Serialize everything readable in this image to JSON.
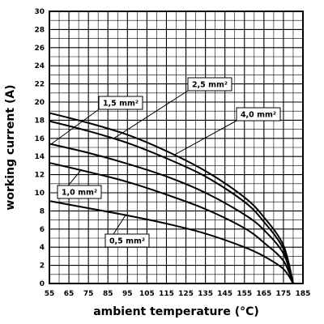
{
  "chart_data": {
    "type": "line",
    "xlabel": "ambient temperature (°C)",
    "ylabel": "working current (A)",
    "xlim": [
      55,
      185
    ],
    "ylim": [
      0,
      30
    ],
    "x_ticks": [
      "55",
      "65",
      "75",
      "85",
      "95",
      "105",
      "115",
      "125",
      "135",
      "145",
      "155",
      "165",
      "175",
      "185"
    ],
    "y_ticks": [
      "0",
      "2",
      "4",
      "6",
      "8",
      "10",
      "12",
      "14",
      "16",
      "18",
      "20",
      "22",
      "24",
      "26",
      "28",
      "30"
    ],
    "grid": true,
    "series": [
      {
        "name": "0,5 mm²",
        "x": [
          55,
          75,
          95,
          115,
          135,
          155,
          165,
          175,
          180
        ],
        "y": [
          9.1,
          8.3,
          7.5,
          6.6,
          5.5,
          4.0,
          3.0,
          1.6,
          0
        ]
      },
      {
        "name": "1,0 mm²",
        "x": [
          55,
          75,
          95,
          115,
          135,
          155,
          165,
          175,
          180
        ],
        "y": [
          13.3,
          12.3,
          11.2,
          9.8,
          8.2,
          6.1,
          4.5,
          2.5,
          0
        ]
      },
      {
        "name": "1,5 mm²",
        "x": [
          55,
          75,
          95,
          115,
          135,
          155,
          165,
          175,
          180
        ],
        "y": [
          15.4,
          14.4,
          13.2,
          11.8,
          10.0,
          7.6,
          5.9,
          3.3,
          0
        ]
      },
      {
        "name": "2,5 mm²",
        "x": [
          55,
          75,
          95,
          115,
          135,
          155,
          165,
          175,
          180
        ],
        "y": [
          17.9,
          16.8,
          15.5,
          13.8,
          11.8,
          9.0,
          6.8,
          3.8,
          0
        ]
      },
      {
        "name": "4,0 mm²",
        "x": [
          55,
          75,
          95,
          115,
          135,
          155,
          165,
          175,
          180
        ],
        "y": [
          18.8,
          17.7,
          16.4,
          14.6,
          12.4,
          9.5,
          7.3,
          4.2,
          0
        ]
      }
    ],
    "labels": [
      {
        "series": "1,5 mm²",
        "text": "1,5 mm²"
      },
      {
        "series": "2,5 mm²",
        "text": "2,5 mm²"
      },
      {
        "series": "4,0 mm²",
        "text": "4,0 mm²"
      },
      {
        "series": "1,0 mm²",
        "text": "1,0 mm²"
      },
      {
        "series": "0,5 mm²",
        "text": "0,5 mm²"
      }
    ]
  }
}
